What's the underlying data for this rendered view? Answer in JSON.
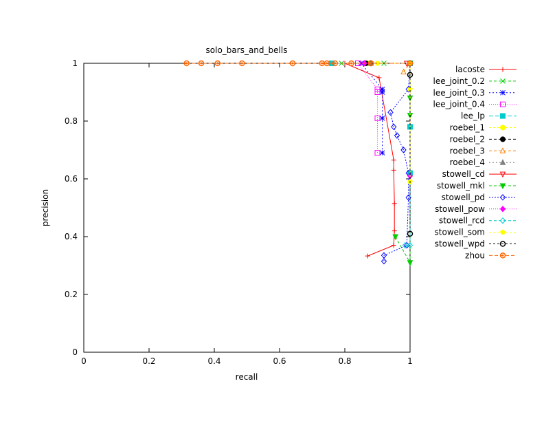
{
  "chart_data": {
    "type": "line",
    "title": "solo_bars_and_bells",
    "xlabel": "recall",
    "ylabel": "precision",
    "xlim": [
      0,
      1
    ],
    "ylim": [
      0,
      1
    ],
    "xticks": [
      "0",
      "0.2",
      "0.4",
      "0.6",
      "0.8",
      "1"
    ],
    "yticks": [
      "0",
      "0.2",
      "0.4",
      "0.6",
      "0.8",
      "1"
    ],
    "grid": false,
    "legend_position": "outside-right",
    "series": [
      {
        "name": "lacoste",
        "color": "#ff0000",
        "marker": "plus",
        "dash": "",
        "points": [
          [
            0.87,
            0.333
          ],
          [
            0.95,
            0.37
          ],
          [
            0.952,
            0.42
          ],
          [
            0.952,
            0.515
          ],
          [
            0.95,
            0.63
          ],
          [
            0.95,
            0.665
          ],
          [
            0.905,
            0.95
          ],
          [
            0.8,
            1.0
          ],
          [
            1.0,
            1.0
          ]
        ]
      },
      {
        "name": "lee_joint_0.2",
        "color": "#00cc00",
        "marker": "x",
        "dash": "4,3",
        "points": [
          [
            0.79,
            1.0
          ],
          [
            0.92,
            1.0
          ],
          [
            1.0,
            1.0
          ]
        ]
      },
      {
        "name": "lee_joint_0.3",
        "color": "#0000ff",
        "marker": "star",
        "dash": "2,3",
        "points": [
          [
            0.915,
            0.69
          ],
          [
            0.915,
            0.81
          ],
          [
            0.915,
            0.9
          ],
          [
            0.915,
            0.91
          ],
          [
            0.85,
            1.0
          ],
          [
            1.0,
            1.0
          ]
        ]
      },
      {
        "name": "lee_joint_0.4",
        "color": "#ff00ff",
        "marker": "square",
        "dash": "1,2",
        "points": [
          [
            0.9,
            0.69
          ],
          [
            0.9,
            0.81
          ],
          [
            0.9,
            0.9
          ],
          [
            0.9,
            0.91
          ],
          [
            0.84,
            1.0
          ],
          [
            1.0,
            1.0
          ]
        ]
      },
      {
        "name": "lee_lp",
        "color": "#00cccc",
        "marker": "fsquare",
        "dash": "6,3",
        "points": [
          [
            0.76,
            1.0
          ],
          [
            1.0,
            1.0
          ],
          [
            1.0,
            0.78
          ],
          [
            1.0,
            0.62
          ]
        ]
      },
      {
        "name": "roebel_1",
        "color": "#ffff00",
        "marker": "fcircle",
        "dash": "3,3",
        "points": [
          [
            0.87,
            1.0
          ],
          [
            1.0,
            1.0
          ]
        ]
      },
      {
        "name": "roebel_2",
        "color": "#000000",
        "marker": "fcircle",
        "dash": "4,3",
        "points": [
          [
            0.865,
            1.0
          ],
          [
            1.0,
            1.0
          ]
        ]
      },
      {
        "name": "roebel_3",
        "color": "#ff8000",
        "marker": "triangle",
        "dash": "4,3",
        "points": [
          [
            0.98,
            0.97
          ],
          [
            1.0,
            1.0
          ]
        ]
      },
      {
        "name": "roebel_4",
        "color": "#808080",
        "marker": "ftriangle",
        "dash": "2,3",
        "points": [
          [
            0.88,
            1.0
          ],
          [
            1.0,
            1.0
          ]
        ]
      },
      {
        "name": "stowell_cd",
        "color": "#ff0000",
        "marker": "dtriangle",
        "dash": "",
        "points": [
          [
            0.99,
            1.0
          ],
          [
            1.0,
            1.0
          ]
        ]
      },
      {
        "name": "stowell_mkl",
        "color": "#00cc00",
        "marker": "fdtriangle",
        "dash": "4,3",
        "points": [
          [
            0.955,
            0.4
          ],
          [
            1.0,
            0.31
          ],
          [
            1.0,
            0.82
          ],
          [
            1.0,
            0.88
          ],
          [
            1.0,
            1.0
          ]
        ]
      },
      {
        "name": "stowell_pd",
        "color": "#0000ff",
        "marker": "diamond",
        "dash": "2,2",
        "points": [
          [
            0.92,
            0.315
          ],
          [
            0.92,
            0.335
          ],
          [
            0.99,
            0.37
          ],
          [
            0.995,
            0.535
          ],
          [
            0.995,
            0.62
          ],
          [
            0.98,
            0.7
          ],
          [
            0.96,
            0.75
          ],
          [
            0.95,
            0.78
          ],
          [
            0.94,
            0.83
          ],
          [
            0.995,
            0.91
          ],
          [
            1.0,
            1.0
          ]
        ]
      },
      {
        "name": "stowell_pow",
        "color": "#ff00ff",
        "marker": "fdiamond",
        "dash": "1,2",
        "points": [
          [
            0.86,
            1.0
          ],
          [
            1.0,
            1.0
          ],
          [
            1.0,
            0.61
          ]
        ]
      },
      {
        "name": "stowell_rcd",
        "color": "#00cccc",
        "marker": "diamond",
        "dash": "4,3",
        "points": [
          [
            0.985,
            0.37
          ],
          [
            1.0,
            0.37
          ],
          [
            1.0,
            0.62
          ],
          [
            1.0,
            1.0
          ]
        ]
      },
      {
        "name": "stowell_som",
        "color": "#ffff00",
        "marker": "fpentagon",
        "dash": "3,3",
        "points": [
          [
            0.9,
            1.0
          ],
          [
            1.0,
            1.0
          ],
          [
            1.0,
            0.91
          ],
          [
            1.0,
            0.59
          ]
        ]
      },
      {
        "name": "stowell_wpd",
        "color": "#000000",
        "marker": "circle",
        "dash": "3,3",
        "points": [
          [
            0.88,
            1.0
          ],
          [
            1.0,
            1.0
          ],
          [
            1.0,
            0.96
          ],
          [
            1.0,
            0.41
          ]
        ]
      },
      {
        "name": "zhou",
        "color": "#ff6600",
        "marker": "circlepoint",
        "dash": "5,3",
        "points": [
          [
            0.315,
            1.0
          ],
          [
            0.36,
            1.0
          ],
          [
            0.41,
            1.0
          ],
          [
            0.485,
            1.0
          ],
          [
            0.64,
            1.0
          ],
          [
            0.73,
            1.0
          ],
          [
            0.745,
            1.0
          ],
          [
            0.77,
            1.0
          ],
          [
            0.82,
            1.0
          ],
          [
            0.88,
            1.0
          ],
          [
            1.0,
            1.0
          ]
        ]
      }
    ]
  }
}
